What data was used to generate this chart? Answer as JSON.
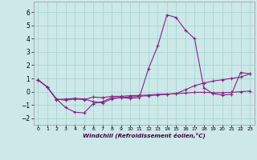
{
  "xlabel": "Windchill (Refroidissement éolien,°C)",
  "background_color": "#cce8e8",
  "grid_color": "#aad4d4",
  "line_color": "#882288",
  "xlim": [
    -0.5,
    23.5
  ],
  "ylim": [
    -2.5,
    6.8
  ],
  "xticks": [
    0,
    1,
    2,
    3,
    4,
    5,
    6,
    7,
    8,
    9,
    10,
    11,
    12,
    13,
    14,
    15,
    16,
    17,
    18,
    19,
    20,
    21,
    22,
    23
  ],
  "yticks": [
    -2,
    -1,
    0,
    1,
    2,
    3,
    4,
    5,
    6
  ],
  "series": [
    {
      "x": [
        0,
        1,
        2,
        3,
        4,
        5,
        6,
        7,
        8,
        9,
        10,
        11,
        12,
        13,
        14,
        15,
        16,
        17,
        18,
        19,
        20,
        21,
        22,
        23
      ],
      "y": [
        0.9,
        0.35,
        -0.55,
        -1.2,
        -1.55,
        -1.6,
        -0.9,
        -0.75,
        -0.45,
        -0.45,
        -0.5,
        -0.45,
        1.75,
        3.45,
        5.8,
        5.6,
        4.65,
        4.0,
        0.3,
        -0.15,
        -0.25,
        -0.2,
        1.45,
        1.35
      ]
    },
    {
      "x": [
        0,
        1,
        2,
        3,
        4,
        5,
        6,
        7,
        8,
        9,
        10,
        11,
        12,
        13,
        14,
        15,
        16,
        17,
        18,
        19,
        20,
        21,
        22,
        23
      ],
      "y": [
        0.9,
        0.35,
        -0.55,
        -0.65,
        -0.55,
        -0.6,
        -0.4,
        -0.45,
        -0.35,
        -0.35,
        -0.3,
        -0.28,
        -0.25,
        -0.2,
        -0.18,
        -0.15,
        -0.1,
        -0.05,
        -0.05,
        -0.08,
        -0.08,
        -0.05,
        0.0,
        0.05
      ]
    },
    {
      "x": [
        0,
        1,
        2,
        3,
        4,
        5,
        6,
        7,
        8,
        9,
        10,
        11,
        12,
        13,
        14,
        15,
        16,
        17,
        18,
        19,
        20,
        21,
        22,
        23
      ],
      "y": [
        0.9,
        0.35,
        -0.6,
        -0.55,
        -0.5,
        -0.55,
        -0.75,
        -0.85,
        -0.55,
        -0.45,
        -0.4,
        -0.35,
        -0.3,
        -0.25,
        -0.2,
        -0.15,
        0.15,
        0.45,
        0.65,
        0.8,
        0.9,
        1.0,
        1.1,
        1.35
      ]
    }
  ]
}
